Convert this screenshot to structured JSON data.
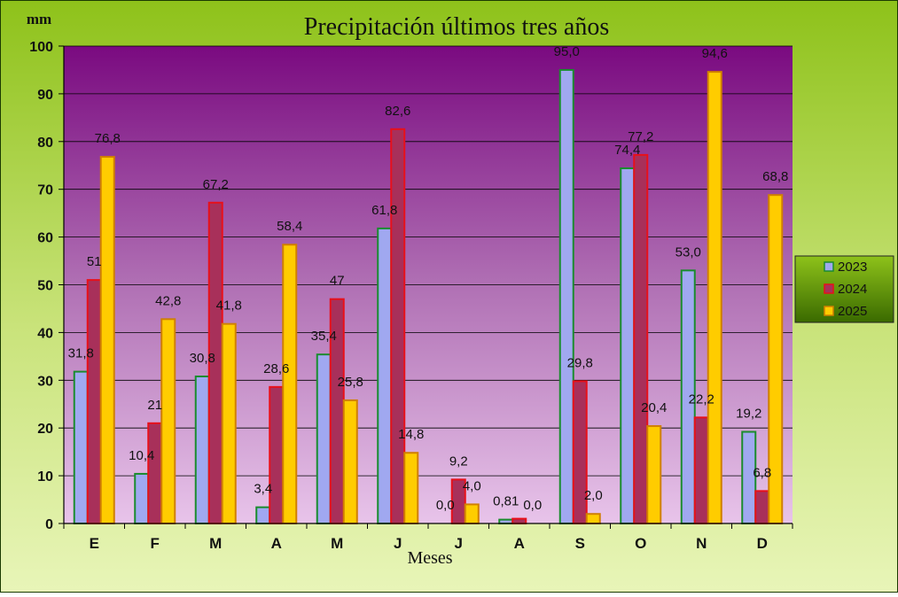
{
  "colors": {
    "series_fill": [
      "#a0a8f0",
      "#a8305a",
      "#ffcc00"
    ],
    "series_stroke": [
      "#1a8c2e",
      "#e8101a",
      "#d08000"
    ]
  },
  "chart_data": {
    "type": "bar",
    "title": "Precipitación últimos tres años",
    "xlabel": "Meses",
    "ylabel": "mm",
    "ylim": [
      0,
      100
    ],
    "yticks": [
      "0",
      "10",
      "20",
      "30",
      "40",
      "50",
      "60",
      "70",
      "80",
      "90",
      "100"
    ],
    "grid": true,
    "legend_position": "right",
    "categories": [
      "E",
      "F",
      "M",
      "A",
      "M",
      "J",
      "J",
      "A",
      "S",
      "O",
      "N",
      "D"
    ],
    "series": [
      {
        "name": "2023",
        "values": [
          31.8,
          10.4,
          30.8,
          3.4,
          35.4,
          61.8,
          0.0,
          0.81,
          95.0,
          74.4,
          53.0,
          19.2
        ],
        "labels": [
          "31,8",
          "10,4",
          "30,8",
          "3,4",
          "35,4",
          "61,8",
          "0,0",
          "0,81",
          "95,0",
          "74,4",
          "53,0",
          "19,2"
        ]
      },
      {
        "name": "2024",
        "values": [
          51,
          21,
          67.2,
          28.6,
          47,
          82.6,
          9.2,
          1.0,
          29.8,
          77.2,
          22.2,
          6.8
        ],
        "labels": [
          "51",
          "21",
          "67,2",
          "28,6",
          "47",
          "82,6",
          "9,2",
          "",
          "29,8",
          "77,2",
          "22,2",
          "6,8"
        ]
      },
      {
        "name": "2025",
        "values": [
          76.8,
          42.8,
          41.8,
          58.4,
          25.8,
          14.8,
          4.0,
          0.0,
          2.0,
          20.4,
          94.6,
          68.8
        ],
        "labels": [
          "76,8",
          "42,8",
          "41,8",
          "58,4",
          "25,8",
          "14,8",
          "4,0",
          "0,0",
          "2,0",
          "20,4",
          "94,6",
          "68,8"
        ]
      }
    ]
  }
}
